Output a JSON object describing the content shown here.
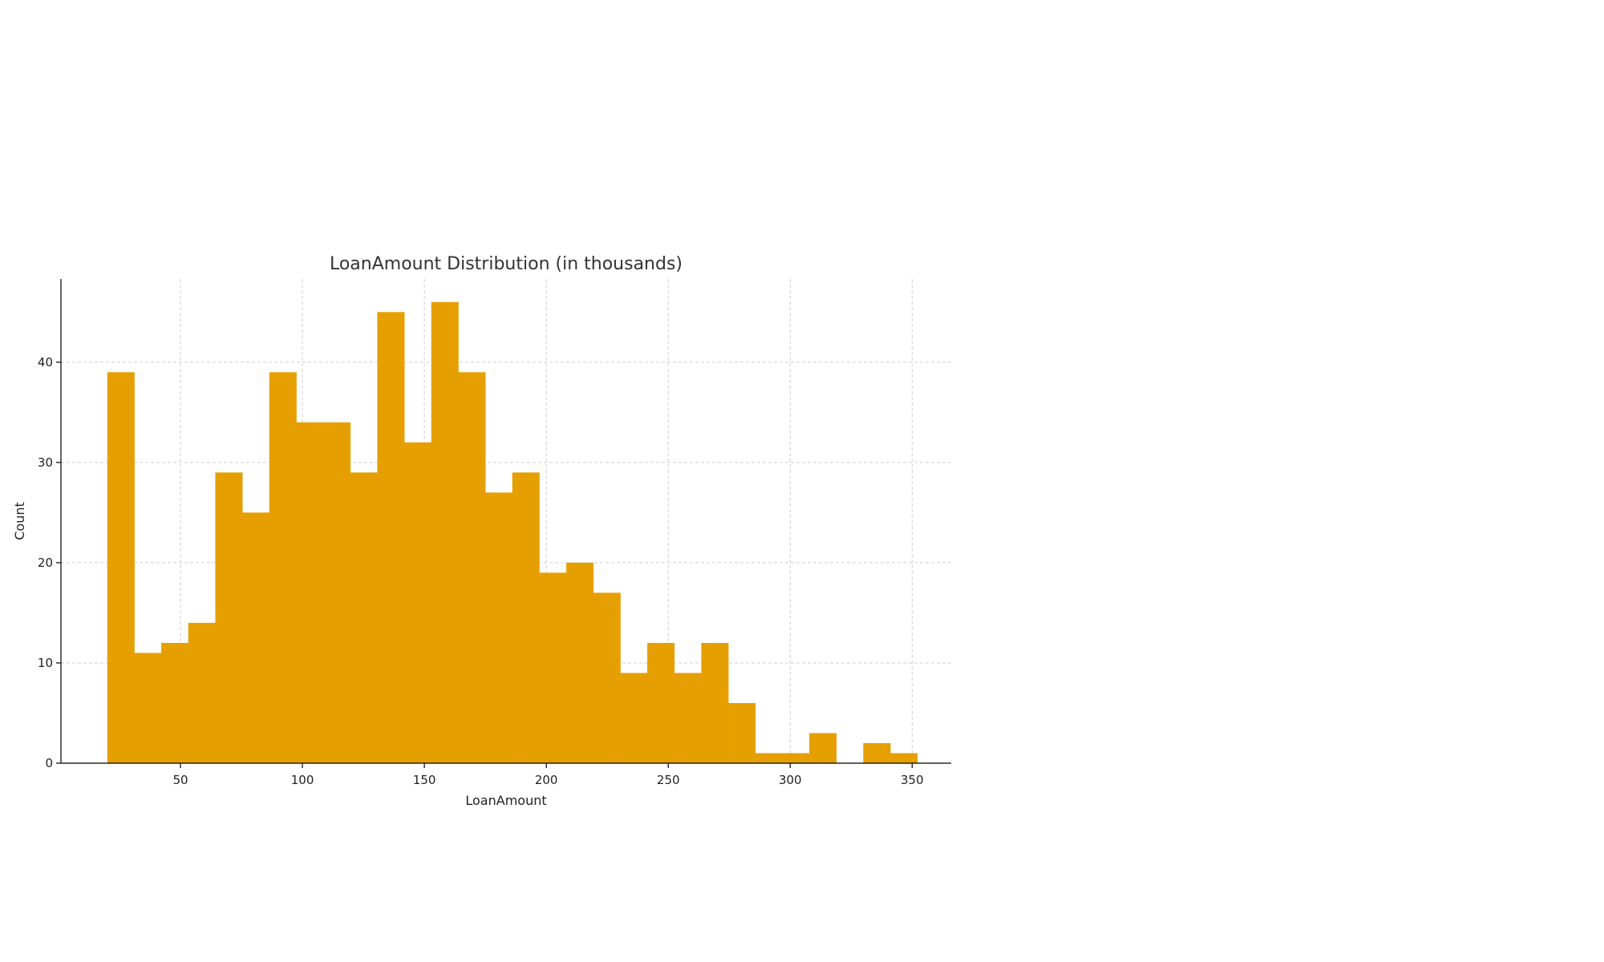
{
  "chart_data": {
    "type": "bar",
    "title": "LoanAmount Distribution (in thousands)",
    "xlabel": "LoanAmount",
    "ylabel": "Count",
    "bar_color": "#E69F00",
    "grid": true,
    "xlim": [
      1,
      366
    ],
    "ylim": [
      0,
      48.3
    ],
    "x_ticks": [
      50,
      100,
      150,
      200,
      250,
      300,
      350
    ],
    "y_ticks": [
      0,
      10,
      20,
      30,
      40
    ],
    "bin_start": 20,
    "bin_width": 11.07,
    "counts": [
      39,
      11,
      12,
      14,
      29,
      25,
      39,
      34,
      34,
      29,
      45,
      32,
      46,
      39,
      27,
      29,
      19,
      20,
      17,
      9,
      12,
      9,
      12,
      6,
      1,
      1,
      3,
      0,
      2,
      1
    ]
  }
}
